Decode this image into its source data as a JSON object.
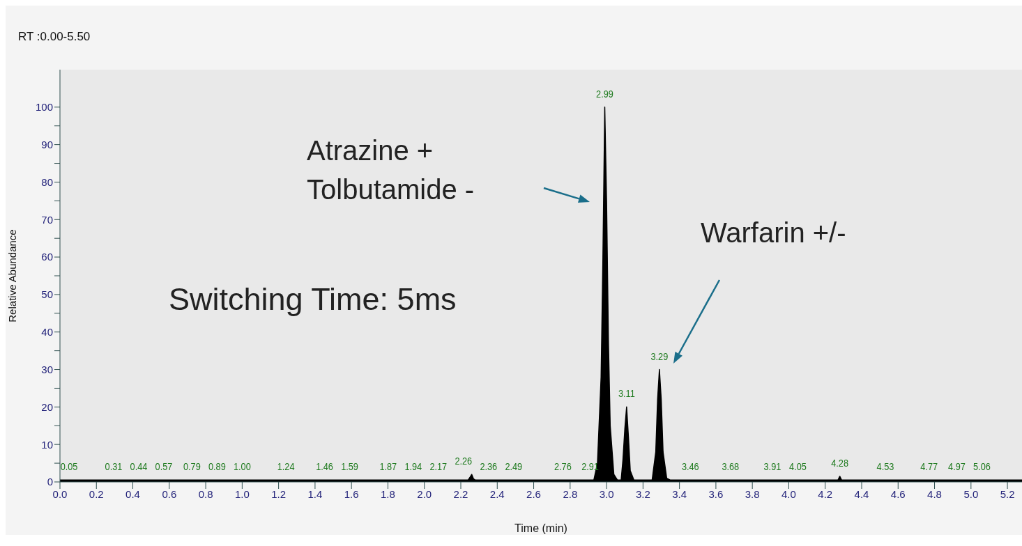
{
  "chart_data": {
    "type": "area",
    "title": "RT :0.00-5.50",
    "xlabel": "Time (min)",
    "ylabel": "Relative Abundance",
    "xlim": [
      0,
      5.28
    ],
    "ylim": [
      0,
      110
    ],
    "xticks": [
      {
        "value": 0,
        "label": "0.0"
      },
      {
        "value": 0.2,
        "label": "0.2"
      },
      {
        "value": 0.4,
        "label": "0.4"
      },
      {
        "value": 0.6,
        "label": "0.6"
      },
      {
        "value": 0.8,
        "label": "0.8"
      },
      {
        "value": 1,
        "label": "1.0"
      },
      {
        "value": 1.2,
        "label": "1.2"
      },
      {
        "value": 1.4,
        "label": "1.4"
      },
      {
        "value": 1.6,
        "label": "1.6"
      },
      {
        "value": 1.8,
        "label": "1.8"
      },
      {
        "value": 2,
        "label": "2.0"
      },
      {
        "value": 2.2,
        "label": "2.2"
      },
      {
        "value": 2.4,
        "label": "2.4"
      },
      {
        "value": 2.6,
        "label": "2.6"
      },
      {
        "value": 2.8,
        "label": "2.8"
      },
      {
        "value": 3,
        "label": "3.0"
      },
      {
        "value": 3.2,
        "label": "3.2"
      },
      {
        "value": 3.4,
        "label": "3.4"
      },
      {
        "value": 3.6,
        "label": "3.6"
      },
      {
        "value": 3.8,
        "label": "3.8"
      },
      {
        "value": 4,
        "label": "4.0"
      },
      {
        "value": 4.2,
        "label": "4.2"
      },
      {
        "value": 4.4,
        "label": "4.4"
      },
      {
        "value": 4.6,
        "label": "4.6"
      },
      {
        "value": 4.8,
        "label": "4.8"
      },
      {
        "value": 5,
        "label": "5.0"
      },
      {
        "value": 5.2,
        "label": "5.2"
      }
    ],
    "yticks": [
      0,
      {
        "value": 5,
        "label": null
      },
      10,
      {
        "value": 15,
        "label": null
      },
      20,
      {
        "value": 25,
        "label": null
      },
      30,
      {
        "value": 35,
        "label": null
      },
      40,
      {
        "value": 45,
        "label": null
      },
      50,
      {
        "value": 55,
        "label": null
      },
      60,
      {
        "value": 65,
        "label": null
      },
      70,
      {
        "value": 75,
        "label": null
      },
      80,
      {
        "value": 85,
        "label": null
      },
      90,
      {
        "value": 95,
        "label": null
      },
      100
    ],
    "series": [
      {
        "color": "#000000",
        "x": [
          0,
          2.24,
          2.25,
          2.26,
          2.27,
          2.28,
          2.93,
          2.95,
          2.97,
          2.98,
          2.99,
          3.0,
          3.01,
          3.02,
          3.04,
          3.06,
          3.08,
          3.09,
          3.1,
          3.11,
          3.12,
          3.13,
          3.15,
          3.25,
          3.27,
          3.28,
          3.29,
          3.3,
          3.31,
          3.33,
          3.35,
          4.27,
          4.28,
          4.29,
          5.28
        ],
        "values": [
          0.5,
          0.5,
          1.2,
          2,
          0.8,
          0.5,
          0.5,
          5,
          28,
          60,
          100,
          75,
          38,
          15,
          2,
          0.5,
          0.5,
          6,
          14,
          20,
          12,
          3,
          0.5,
          0.5,
          8,
          22,
          30,
          22,
          8,
          1,
          0.5,
          0.5,
          1.5,
          0.5,
          0.5
        ]
      }
    ],
    "annotations": [
      "Atrazine +\nTolbutamide -",
      "Warfarin +/-",
      "Switching Time: 5ms",
      {
        "text": "0.05",
        "x": 0.05,
        "y": 0.5
      },
      {
        "text": "0.31",
        "x": 0.31,
        "y": 0.5
      },
      {
        "text": "0.44",
        "x": 0.44,
        "y": 0.5
      },
      {
        "text": "0.57",
        "x": 0.57,
        "y": 0.5
      },
      {
        "text": "0.79",
        "x": 0.79,
        "y": 0.5
      },
      {
        "text": "0.89",
        "x": 0.89,
        "y": 0.5
      },
      {
        "text": "1.00",
        "x": 1.0,
        "y": 0.5
      },
      {
        "text": "1.24",
        "x": 1.24,
        "y": 0.5
      },
      {
        "text": "1.46",
        "x": 1.46,
        "y": 0.5
      },
      {
        "text": "1.59",
        "x": 1.59,
        "y": 0.5
      },
      {
        "text": "1.87",
        "x": 1.87,
        "y": 0.5
      },
      {
        "text": "1.94",
        "x": 1.94,
        "y": 0.5
      },
      {
        "text": "2.17",
        "x": 2.17,
        "y": 0.5
      },
      {
        "text": "2.26",
        "x": 2.26,
        "y": 2
      },
      {
        "text": "2.36",
        "x": 2.36,
        "y": 0.5
      },
      {
        "text": "2.49",
        "x": 2.49,
        "y": 0.5
      },
      {
        "text": "2.76",
        "x": 2.76,
        "y": 0.5
      },
      {
        "text": "2.91",
        "x": 2.91,
        "y": 0.5
      },
      {
        "text": "2.99",
        "x": 2.99,
        "y": 100
      },
      {
        "text": "3.11",
        "x": 3.11,
        "y": 20
      },
      {
        "text": "3.29",
        "x": 3.29,
        "y": 30
      },
      {
        "text": "3.46",
        "x": 3.46,
        "y": 0.5
      },
      {
        "text": "3.68",
        "x": 3.68,
        "y": 0.5
      },
      {
        "text": "3.91",
        "x": 3.91,
        "y": 0.5
      },
      {
        "text": "4.05",
        "x": 4.05,
        "y": 0.5
      },
      {
        "text": "4.28",
        "x": 4.28,
        "y": 1.5
      },
      {
        "text": "4.53",
        "x": 4.53,
        "y": 0.5
      },
      {
        "text": "4.77",
        "x": 4.77,
        "y": 0.5
      },
      {
        "text": "4.97",
        "x": 4.97,
        "y": 0.5
      },
      {
        "text": "5.06",
        "x": 5.06,
        "y": 0.5
      }
    ]
  }
}
